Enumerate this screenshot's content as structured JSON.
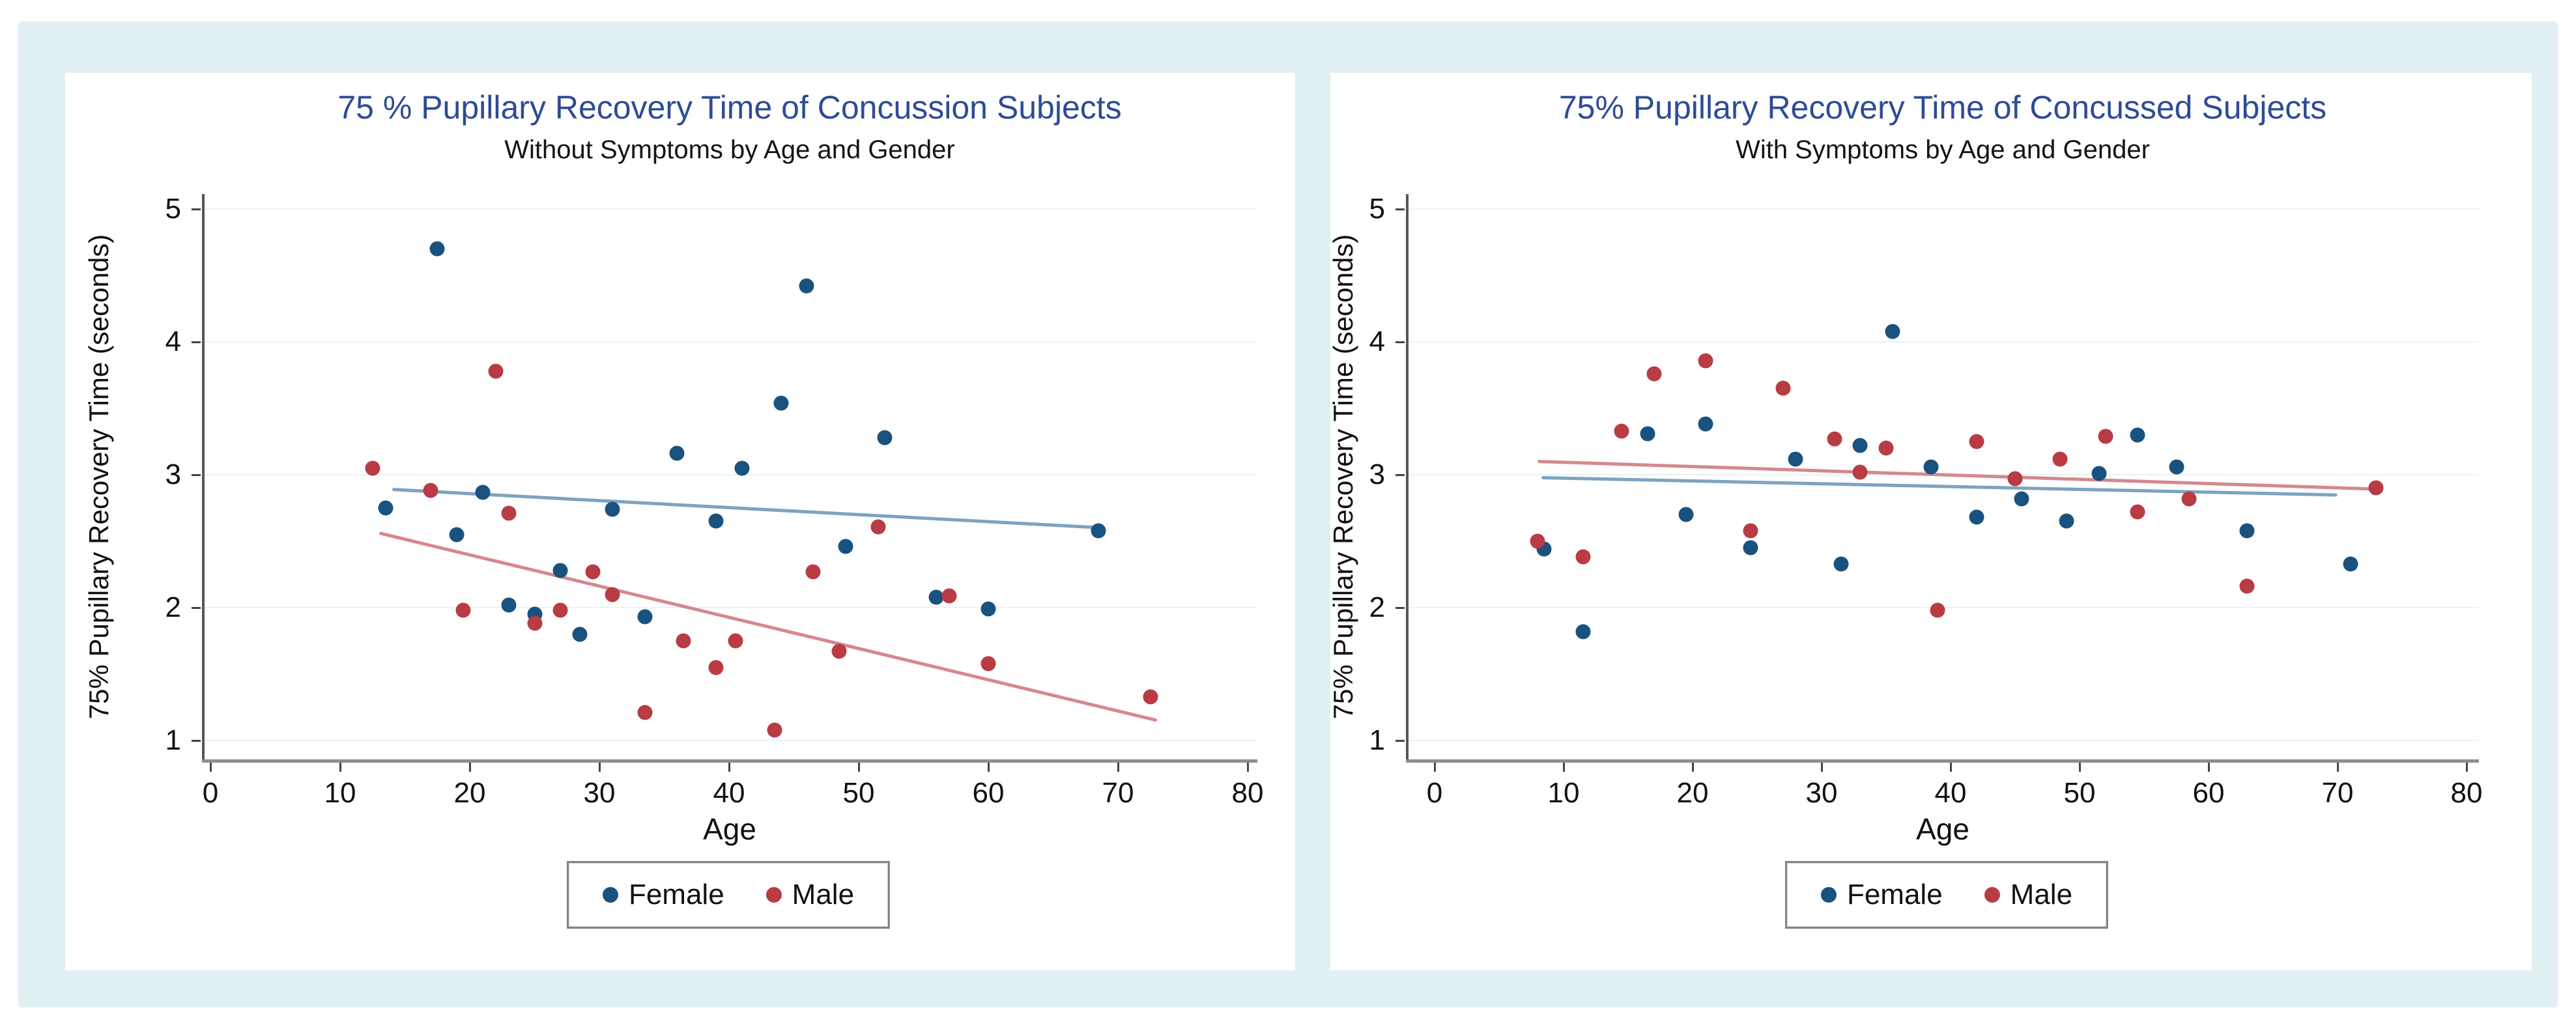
{
  "page": {
    "background_color": "#ffffff",
    "canvas_color": "#e1f0f2",
    "panel_color": "#ffffff",
    "title_color": "#2d4b96",
    "grid_color": "#e7f4f3"
  },
  "chart_data": [
    {
      "type": "scatter",
      "title": "75 % Pupillary Recovery Time of Concussion Subjects",
      "subtitle": "Without Symptoms by Age and Gender",
      "xlabel": "Age",
      "ylabel": "75% Pupillary Recovery Time (seconds)",
      "xlim": [
        0,
        80
      ],
      "ylim": [
        1,
        5
      ],
      "xticks": [
        0,
        10,
        20,
        30,
        40,
        50,
        60,
        70,
        80
      ],
      "yticks": [
        1,
        2,
        3,
        4,
        5
      ],
      "grid": true,
      "legend_position": "bottom",
      "legend": [
        "Female",
        "Male"
      ],
      "series": [
        {
          "name": "Female",
          "color": "#1a527f",
          "points": [
            [
              13.5,
              2.75
            ],
            [
              17.5,
              4.7
            ],
            [
              19,
              2.55
            ],
            [
              21,
              2.87
            ],
            [
              23,
              2.02
            ],
            [
              25,
              1.95
            ],
            [
              27,
              2.28
            ],
            [
              28.5,
              1.8
            ],
            [
              31,
              2.74
            ],
            [
              33.5,
              1.93
            ],
            [
              36,
              3.16
            ],
            [
              39,
              2.65
            ],
            [
              41,
              3.05
            ],
            [
              44,
              3.54
            ],
            [
              46,
              4.42
            ],
            [
              49,
              2.46
            ],
            [
              52,
              3.28
            ],
            [
              56,
              2.08
            ],
            [
              60,
              1.99
            ],
            [
              68.5,
              2.58
            ]
          ]
        },
        {
          "name": "Male",
          "color": "#b93b43",
          "points": [
            [
              12.5,
              3.05
            ],
            [
              17,
              2.88
            ],
            [
              19.5,
              1.98
            ],
            [
              22,
              3.78
            ],
            [
              23,
              2.71
            ],
            [
              25,
              1.88
            ],
            [
              27,
              1.98
            ],
            [
              29.5,
              2.27
            ],
            [
              31,
              2.1
            ],
            [
              33.5,
              1.21
            ],
            [
              36.5,
              1.75
            ],
            [
              39,
              1.55
            ],
            [
              40.5,
              1.75
            ],
            [
              43.5,
              1.08
            ],
            [
              46.5,
              2.27
            ],
            [
              48.5,
              1.67
            ],
            [
              51.5,
              2.61
            ],
            [
              57,
              2.09
            ],
            [
              60,
              1.58
            ],
            [
              72.5,
              1.33
            ]
          ]
        }
      ],
      "trend_lines": [
        {
          "series": "Female",
          "color": "#7ea3c1",
          "from": [
            14,
            2.89
          ],
          "to": [
            69,
            2.6
          ]
        },
        {
          "series": "Male",
          "color": "#d4888e",
          "from": [
            13,
            2.56
          ],
          "to": [
            73,
            1.15
          ]
        }
      ]
    },
    {
      "type": "scatter",
      "title": "75% Pupillary Recovery Time of Concussed Subjects",
      "subtitle": "With Symptoms by Age and Gender",
      "xlabel": "Age",
      "ylabel": "75% Pupillary Recovery Time (seconds)",
      "xlim": [
        0,
        80
      ],
      "ylim": [
        1,
        5
      ],
      "xticks": [
        0,
        10,
        20,
        30,
        40,
        50,
        60,
        70,
        80
      ],
      "yticks": [
        1,
        2,
        3,
        4,
        5
      ],
      "grid": true,
      "legend_position": "bottom",
      "legend": [
        "Female",
        "Male"
      ],
      "series": [
        {
          "name": "Female",
          "color": "#1a527f",
          "points": [
            [
              8.5,
              2.44
            ],
            [
              11.5,
              1.82
            ],
            [
              16.5,
              3.31
            ],
            [
              19.5,
              2.7
            ],
            [
              21,
              3.38
            ],
            [
              24.5,
              2.45
            ],
            [
              28,
              3.12
            ],
            [
              31.5,
              2.33
            ],
            [
              33,
              3.22
            ],
            [
              35.5,
              4.08
            ],
            [
              38.5,
              3.06
            ],
            [
              42,
              2.68
            ],
            [
              45.5,
              2.82
            ],
            [
              49,
              2.65
            ],
            [
              51.5,
              3.01
            ],
            [
              54.5,
              3.3
            ],
            [
              57.5,
              3.06
            ],
            [
              63,
              2.58
            ],
            [
              71,
              2.33
            ]
          ]
        },
        {
          "name": "Male",
          "color": "#b93b43",
          "points": [
            [
              8,
              2.5
            ],
            [
              11.5,
              2.38
            ],
            [
              14.5,
              3.33
            ],
            [
              17,
              3.76
            ],
            [
              21,
              3.86
            ],
            [
              24.5,
              2.58
            ],
            [
              27,
              3.65
            ],
            [
              31,
              3.27
            ],
            [
              33,
              3.02
            ],
            [
              35,
              3.2
            ],
            [
              39,
              1.98
            ],
            [
              42,
              3.25
            ],
            [
              45,
              2.97
            ],
            [
              48.5,
              3.12
            ],
            [
              52,
              3.29
            ],
            [
              54.5,
              2.72
            ],
            [
              58.5,
              2.82
            ],
            [
              63,
              2.16
            ],
            [
              73,
              2.9
            ]
          ]
        }
      ],
      "trend_lines": [
        {
          "series": "Female",
          "color": "#7ea3c1",
          "from": [
            8.3,
            2.98
          ],
          "to": [
            70,
            2.85
          ]
        },
        {
          "series": "Male",
          "color": "#d4888e",
          "from": [
            8,
            3.1
          ],
          "to": [
            73.5,
            2.89
          ]
        }
      ]
    }
  ]
}
